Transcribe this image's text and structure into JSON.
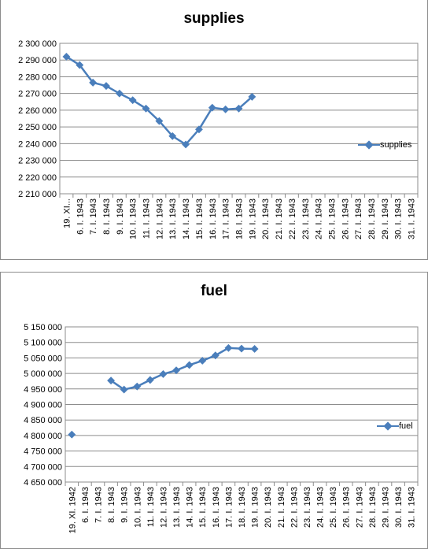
{
  "chart_data": [
    {
      "type": "line",
      "title": "supplies",
      "xlabel": "",
      "ylabel": "",
      "ylim": [
        2210000,
        2300000
      ],
      "ytick_step": 10000,
      "ytick_labels": [
        "2 210 000",
        "2 220 000",
        "2 230 000",
        "2 240 000",
        "2 250 000",
        "2 260 000",
        "2 270 000",
        "2 280 000",
        "2 290 000",
        "2 300 000"
      ],
      "grid": true,
      "legend": "right",
      "series_color": "#4a7ebb",
      "categories": [
        "19. XI...",
        "6. I. 1943",
        "7. I. 1943",
        "8. I. 1943",
        "9. I. 1943",
        "10. I. 1943",
        "11. I. 1943",
        "12. I. 1943",
        "13. I. 1943",
        "14. I. 1943",
        "15. I. 1943",
        "16. I. 1943",
        "17. I. 1943",
        "18. I. 1943",
        "19. I. 1943",
        "20. I. 1943",
        "21. I. 1943",
        "22. I. 1943",
        "23. I. 1943",
        "24. I. 1943",
        "25. I. 1943",
        "26. I. 1943",
        "27. I. 1943",
        "28. I. 1943",
        "29. I. 1943",
        "30. I. 1943",
        "31. I. 1943"
      ],
      "series": [
        {
          "name": "supplies",
          "values": [
            2292000,
            2287000,
            2276500,
            2274500,
            2270000,
            2266000,
            2261000,
            2253500,
            2244500,
            2239500,
            2248500,
            2261500,
            2260500,
            2261000,
            2268000,
            null,
            null,
            null,
            null,
            null,
            null,
            null,
            null,
            null,
            null,
            null,
            null
          ]
        }
      ]
    },
    {
      "type": "line",
      "title": "fuel",
      "xlabel": "",
      "ylabel": "",
      "ylim": [
        4650000,
        5150000
      ],
      "ytick_step": 50000,
      "ytick_labels": [
        "4 650 000",
        "4 700 000",
        "4 750 000",
        "4 800 000",
        "4 850 000",
        "4 900 000",
        "4 950 000",
        "5 000 000",
        "5 050 000",
        "5 100 000",
        "5 150 000"
      ],
      "grid": true,
      "legend": "right",
      "series_color": "#4a7ebb",
      "categories": [
        "19. XI. 1942",
        "6. I. 1943",
        "7. I. 1943",
        "8. I. 1943",
        "9. I. 1943",
        "10. I. 1943",
        "11. I. 1943",
        "12. I. 1943",
        "13. I. 1943",
        "14. I. 1943",
        "15. I. 1943",
        "16. I. 1943",
        "17. I. 1943",
        "18. I. 1943",
        "19. I. 1943",
        "20. I. 1943",
        "21. I. 1943",
        "22. I. 1943",
        "23. I. 1943",
        "24. I. 1943",
        "25. I. 1943",
        "26. I. 1943",
        "27. I. 1943",
        "28. I. 1943",
        "29. I. 1943",
        "30. I. 1943",
        "31. I. 1943"
      ],
      "series": [
        {
          "name": "fuel",
          "values": [
            4803000,
            null,
            null,
            4977000,
            4948000,
            4958000,
            4979000,
            4998000,
            5010000,
            5027000,
            5041000,
            5058000,
            5082000,
            5080000,
            5079000,
            null,
            null,
            null,
            null,
            null,
            null,
            null,
            null,
            null,
            null,
            null,
            null
          ]
        }
      ]
    }
  ]
}
